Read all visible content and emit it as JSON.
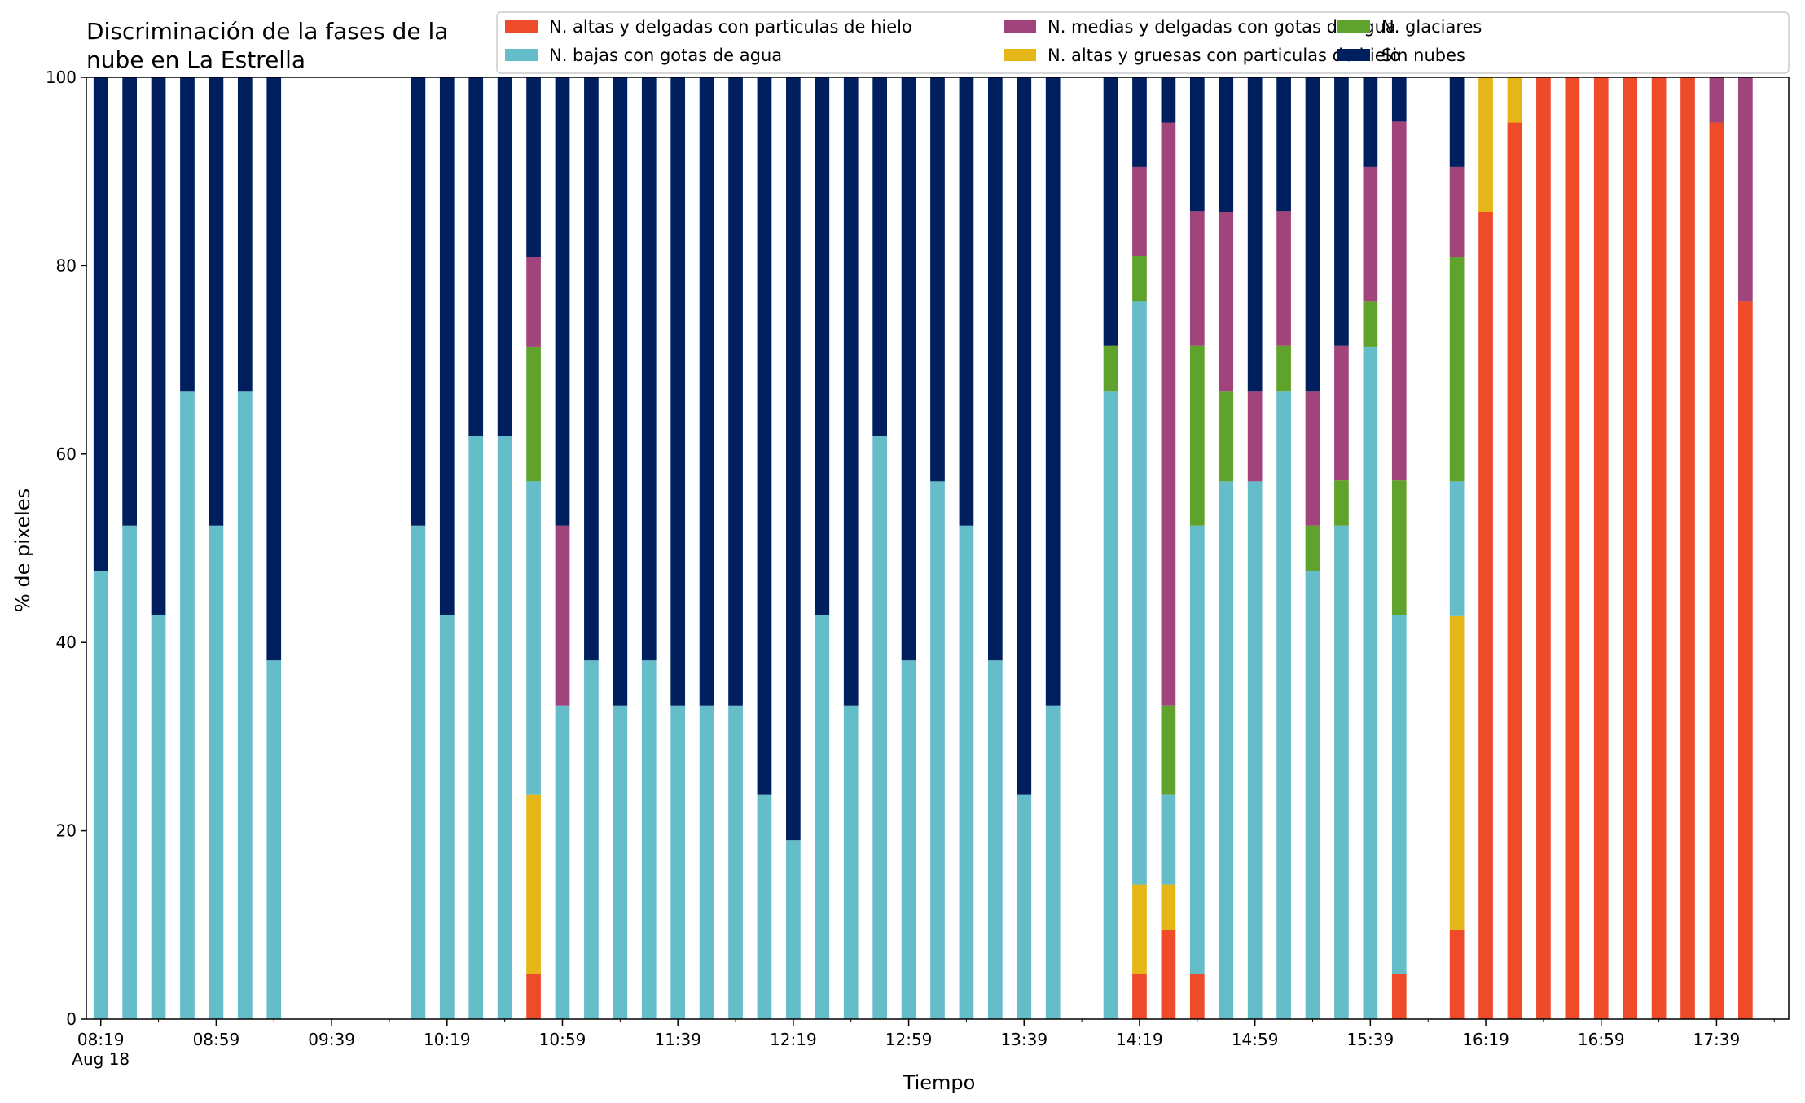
{
  "chart_data": {
    "type": "bar",
    "stacked": true,
    "title": [
      "Discriminación de la fases de la",
      "nube en La Estrella"
    ],
    "xlabel": "Tiempo",
    "ylabel": "% de pixeles",
    "ylim": [
      0,
      100
    ],
    "yticks": [
      0,
      20,
      40,
      60,
      80,
      100
    ],
    "xlim": [
      "08:14",
      "18:04"
    ],
    "xticks": [
      {
        "time": "08:19",
        "label": "08:19",
        "sublabel": "Aug 18"
      },
      {
        "time": "08:59",
        "label": "08:59"
      },
      {
        "time": "09:39",
        "label": "09:39"
      },
      {
        "time": "10:19",
        "label": "10:19"
      },
      {
        "time": "10:59",
        "label": "10:59"
      },
      {
        "time": "11:39",
        "label": "11:39"
      },
      {
        "time": "12:19",
        "label": "12:19"
      },
      {
        "time": "12:59",
        "label": "12:59"
      },
      {
        "time": "13:39",
        "label": "13:39"
      },
      {
        "time": "14:19",
        "label": "14:19"
      },
      {
        "time": "14:59",
        "label": "14:59"
      },
      {
        "time": "15:39",
        "label": "15:39"
      },
      {
        "time": "16:19",
        "label": "16:19"
      },
      {
        "time": "16:59",
        "label": "16:59"
      },
      {
        "time": "17:39",
        "label": "17:39"
      }
    ],
    "legend_position": "top-right",
    "series": [
      {
        "name": "N. altas y delgadas con particulas de hielo",
        "color": "#ee4b2b"
      },
      {
        "name": "N. altas y gruesas con particulas de hielo",
        "color": "#e5b618"
      },
      {
        "name": "N. bajas con gotas de agua",
        "color": "#66bdca"
      },
      {
        "name": "N. glaciares",
        "color": "#5fa22c"
      },
      {
        "name": "N. medias y delgadas con gotas de agua",
        "color": "#a2447c"
      },
      {
        "name": "Sin nubes",
        "color": "#001f5f"
      }
    ],
    "legend_order": [
      0,
      2,
      4,
      1,
      3,
      5
    ],
    "times": [
      "08:19",
      "08:29",
      "08:39",
      "08:49",
      "08:59",
      "09:09",
      "09:19",
      "10:09",
      "10:19",
      "10:29",
      "10:39",
      "10:49",
      "10:59",
      "11:09",
      "11:19",
      "11:29",
      "11:39",
      "11:49",
      "11:59",
      "12:09",
      "12:19",
      "12:29",
      "12:39",
      "12:49",
      "12:59",
      "13:09",
      "13:19",
      "13:29",
      "13:39",
      "13:49",
      "14:09",
      "14:19",
      "14:29",
      "14:39",
      "14:49",
      "14:59",
      "15:09",
      "15:19",
      "15:29",
      "15:39",
      "15:49",
      "16:09",
      "16:19",
      "16:29",
      "16:39",
      "16:49",
      "16:59",
      "17:09",
      "17:19",
      "17:29",
      "17:39",
      "17:49"
    ],
    "values": [
      [
        0,
        0,
        47.6,
        0,
        0,
        52.4
      ],
      [
        0,
        0,
        52.4,
        0,
        0,
        47.6
      ],
      [
        0,
        0,
        42.9,
        0,
        0,
        57.1
      ],
      [
        0,
        0,
        66.7,
        0,
        0,
        33.3
      ],
      [
        0,
        0,
        52.4,
        0,
        0,
        47.6
      ],
      [
        0,
        0,
        66.7,
        0,
        0,
        33.3
      ],
      [
        0,
        0,
        38.1,
        0,
        0,
        61.9
      ],
      [
        0,
        0,
        52.4,
        0,
        0,
        47.6
      ],
      [
        0,
        0,
        42.9,
        0,
        0,
        57.1
      ],
      [
        0,
        0,
        61.9,
        0,
        0,
        38.1
      ],
      [
        0,
        0,
        61.9,
        0,
        0,
        38.1
      ],
      [
        4.8,
        19.0,
        33.3,
        14.3,
        9.5,
        19.1
      ],
      [
        0,
        0,
        33.3,
        0,
        19.1,
        47.6
      ],
      [
        0,
        0,
        38.1,
        0,
        0,
        61.9
      ],
      [
        0,
        0,
        33.3,
        0,
        0,
        66.7
      ],
      [
        0,
        0,
        38.1,
        0,
        0,
        61.9
      ],
      [
        0,
        0,
        33.3,
        0,
        0,
        66.7
      ],
      [
        0,
        0,
        33.3,
        0,
        0,
        66.7
      ],
      [
        0,
        0,
        33.3,
        0,
        0,
        66.7
      ],
      [
        0,
        0,
        23.8,
        0,
        0,
        76.2
      ],
      [
        0,
        0,
        19.0,
        0,
        0,
        81.0
      ],
      [
        0,
        0,
        42.9,
        0,
        0,
        57.1
      ],
      [
        0,
        0,
        33.3,
        0,
        0,
        66.7
      ],
      [
        0,
        0,
        61.9,
        0,
        0,
        38.1
      ],
      [
        0,
        0,
        38.1,
        0,
        0,
        61.9
      ],
      [
        0,
        0,
        57.1,
        0,
        0,
        42.9
      ],
      [
        0,
        0,
        52.4,
        0,
        0,
        47.6
      ],
      [
        0,
        0,
        38.1,
        0,
        0,
        61.9
      ],
      [
        0,
        0,
        23.8,
        0,
        0,
        76.2
      ],
      [
        0,
        0,
        33.3,
        0,
        0,
        66.7
      ],
      [
        0,
        0,
        66.7,
        4.8,
        0,
        28.5
      ],
      [
        4.8,
        9.5,
        61.9,
        4.8,
        9.5,
        9.5
      ],
      [
        9.5,
        4.8,
        9.5,
        9.5,
        61.9,
        4.8
      ],
      [
        4.8,
        0,
        47.6,
        19.1,
        14.3,
        14.2
      ],
      [
        0,
        0,
        57.1,
        9.6,
        19.0,
        14.3
      ],
      [
        0,
        0,
        57.1,
        0,
        9.6,
        33.3
      ],
      [
        0,
        0,
        66.7,
        4.8,
        14.3,
        14.2
      ],
      [
        0,
        0,
        47.6,
        4.8,
        14.3,
        33.3
      ],
      [
        0,
        0,
        52.4,
        4.8,
        14.3,
        28.5
      ],
      [
        0,
        0,
        71.4,
        4.8,
        14.3,
        9.5
      ],
      [
        4.8,
        0,
        38.1,
        14.3,
        38.1,
        4.7
      ],
      [
        9.5,
        33.3,
        14.3,
        23.8,
        9.6,
        9.5
      ],
      [
        85.7,
        14.3,
        0,
        0,
        0,
        0
      ],
      [
        95.2,
        4.8,
        0,
        0,
        0,
        0
      ],
      [
        100,
        0,
        0,
        0,
        0,
        0
      ],
      [
        100,
        0,
        0,
        0,
        0,
        0
      ],
      [
        100,
        0,
        0,
        0,
        0,
        0
      ],
      [
        100,
        0,
        0,
        0,
        0,
        0
      ],
      [
        100,
        0,
        0,
        0,
        0,
        0
      ],
      [
        100,
        0,
        0,
        0,
        0,
        0
      ],
      [
        95.2,
        0,
        0,
        0,
        4.8,
        0
      ],
      [
        76.2,
        0,
        0,
        0,
        23.8,
        0
      ]
    ]
  }
}
